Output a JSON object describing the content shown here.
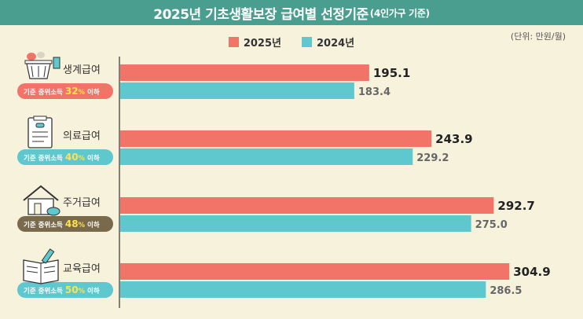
{
  "title": "2025년 기초생활보장 급여별 선정기준",
  "title_sub": "(4인가구 기준)",
  "unit": "(단위: 만원/월)",
  "colors": {
    "title_bg": "#4a9e8f",
    "bar_2025": "#f27468",
    "bar_2024": "#5fc8cf",
    "background": "#f7f2dc",
    "highlight_yellow": "#ffe34d"
  },
  "chart_data": {
    "type": "bar",
    "orientation": "horizontal",
    "categories": [
      "생계급여",
      "의료급여",
      "주거급여",
      "교육급여"
    ],
    "series": [
      {
        "name": "2025년",
        "values": [
          195.1,
          243.9,
          292.7,
          304.9
        ]
      },
      {
        "name": "2024년",
        "values": [
          183.4,
          229.2,
          275.0,
          286.5
        ]
      }
    ],
    "value_labels": [
      [
        "195.1",
        "183.4"
      ],
      [
        "243.9",
        "229.2"
      ],
      [
        "292.7",
        "275.0"
      ],
      [
        "304.9",
        "286.5"
      ]
    ],
    "xlim": [
      0,
      330
    ],
    "legend_position": "top-center",
    "grid": false
  },
  "criteria": [
    {
      "prefix": "기준 중위소득",
      "pct": "32",
      "pct_unit": "%",
      "suffix": "이하",
      "bg": "#f27468",
      "icon": "cooking-pot-icon"
    },
    {
      "prefix": "기준 중위소득",
      "pct": "40",
      "pct_unit": "%",
      "suffix": "이하",
      "bg": "#5fc8cf",
      "icon": "clipboard-checklist-icon"
    },
    {
      "prefix": "기준 중위소득",
      "pct": "48",
      "pct_unit": "%",
      "suffix": "이하",
      "bg": "#7a6a4c",
      "icon": "house-icon"
    },
    {
      "prefix": "기준 중위소득",
      "pct": "50",
      "pct_unit": "%",
      "suffix": "이하",
      "bg": "#5fc8cf",
      "icon": "open-book-icon"
    }
  ]
}
